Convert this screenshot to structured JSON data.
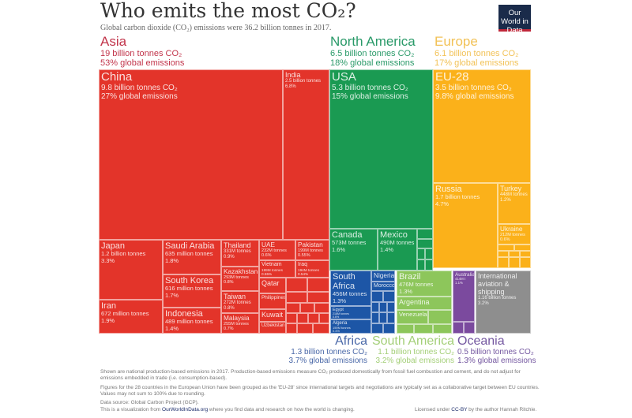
{
  "header": {
    "title": "Who emits the most CO₂?",
    "subtitle": "Global carbon dioxide (CO₂) emissions were 36.2 billion tonnes in 2017.",
    "logo": "Our World in Data"
  },
  "colors": {
    "Asia": "#e3342a",
    "North America": "#1a9a52",
    "Europe": "#fbb11a",
    "Africa": "#1d56a6",
    "South America": "#8dc65b",
    "Oceania": "#7b4a9e",
    "Aviation": "#8e8e8e",
    "Asia_label": "#c2354b",
    "North America_label": "#2a9a69",
    "Europe_label": "#f2c257",
    "Africa_label": "#4a68a8",
    "South America_label": "#a4cf78",
    "Oceania_label": "#7457a0"
  },
  "chart_data": {
    "type": "treemap",
    "title": "Who emits the most CO₂?",
    "total": "36.2 billion tonnes",
    "regions": [
      {
        "name": "Asia",
        "amount": "19 billion tonnes CO₂",
        "share": "53% global emissions",
        "countries": [
          {
            "name": "China",
            "amount": "9.8 billion tonnes CO₂",
            "share": "27% global emissions"
          },
          {
            "name": "India",
            "amount": "2.5 billion tonnes",
            "share": "6.8%"
          },
          {
            "name": "Japan",
            "amount": "1.2 billion tonnes",
            "share": "3.3%"
          },
          {
            "name": "Iran",
            "amount": "672 million tonnes",
            "share": "1.9%"
          },
          {
            "name": "Saudi Arabia",
            "amount": "635 million tonnes",
            "share": "1.8%"
          },
          {
            "name": "South Korea",
            "amount": "616 million tonnes",
            "share": "1.7%"
          },
          {
            "name": "Indonesia",
            "amount": "489 million tonnes",
            "share": "1.4%"
          },
          {
            "name": "Thailand",
            "amount": "331M tonnes",
            "share": "0.9%"
          },
          {
            "name": "Kazakhstan",
            "amount": "293M tonnes",
            "share": "0.8%"
          },
          {
            "name": "Taiwan",
            "amount": "272M tonnes",
            "share": "0.8%"
          },
          {
            "name": "Malaysia",
            "amount": "255M tonnes",
            "share": "0.7%"
          },
          {
            "name": "UAE",
            "amount": "232M tonnes",
            "share": "0.6%"
          },
          {
            "name": "Pakistan",
            "amount": "199M tonnes",
            "share": "0.55%"
          },
          {
            "name": "Vietnam",
            "amount": "199M tonnes",
            "share": "0.55%"
          },
          {
            "name": "Iraq",
            "amount": "194M tonnes",
            "share": "0.54%"
          },
          {
            "name": "Qatar"
          },
          {
            "name": "Philippines"
          },
          {
            "name": "Kuwait"
          },
          {
            "name": "Uzbekistan"
          }
        ]
      },
      {
        "name": "North America",
        "amount": "6.5 billion tonnes CO₂",
        "share": "18% global emissions",
        "countries": [
          {
            "name": "USA",
            "amount": "5.3 billion tonnes CO₂",
            "share": "15% global emissions"
          },
          {
            "name": "Canada",
            "amount": "573M tonnes",
            "share": "1.6%"
          },
          {
            "name": "Mexico",
            "amount": "490M tonnes",
            "share": "1.4%"
          }
        ]
      },
      {
        "name": "Europe",
        "amount": "6.1 billion tonnes CO₂",
        "share": "17% global emissions",
        "countries": [
          {
            "name": "EU-28",
            "amount": "3.5 billion tonnes CO₂",
            "share": "9.8% global emissions"
          },
          {
            "name": "Russia",
            "amount": "1.7 billion tonnes",
            "share": "4.7%"
          },
          {
            "name": "Turkey",
            "amount": "448M tonnes",
            "share": "1.2%"
          },
          {
            "name": "Ukraine",
            "amount": "212M tonnes",
            "share": "0.6%"
          }
        ]
      },
      {
        "name": "Africa",
        "amount": "1.3 billion tonnes CO₂",
        "share": "3.7% global emissions",
        "countries": [
          {
            "name": "South Africa",
            "amount": "456M tonnes",
            "share": "1.3%"
          },
          {
            "name": "Egypt",
            "amount": "218M tonnes",
            "share": "0.6%"
          },
          {
            "name": "Algeria",
            "amount": "159M tonnes",
            "share": "0.4%"
          },
          {
            "name": "Nigeria"
          },
          {
            "name": "Morocco"
          }
        ]
      },
      {
        "name": "South America",
        "amount": "1.1 billion tonnes CO₂",
        "share": "3.2% global emissions",
        "countries": [
          {
            "name": "Brazil",
            "amount": "476M tonnes",
            "share": "1.3%"
          },
          {
            "name": "Argentina"
          },
          {
            "name": "Venezuela"
          }
        ]
      },
      {
        "name": "Oceania",
        "amount": "0.5 billion tonnes CO₂",
        "share": "1.3% global emissions",
        "countries": [
          {
            "name": "Australia",
            "amount": "414M t",
            "share": "1.1%"
          }
        ]
      },
      {
        "name": "International aviation & shipping",
        "amount": "1.16 billion tonnes",
        "share": "3.2%",
        "countries": []
      }
    ]
  },
  "footer": {
    "note1": "Shown are national production-based emissions in 2017. Production-based emissions measure CO₂ produced domestically from fossil fuel combustion and cement, and do not adjust for emissions embedded in trade (i.e. consumption-based).",
    "note2": "Figures for the 28 countries in the European Union have been grouped as the 'EU-28' since international targets and negotiations are typically set as a collaborative target between EU countries. Values may not sum to 100% due to rounding.",
    "source": "Data source: Global Carbon Project (GCP).",
    "credit_pre": "This is a visualization from ",
    "credit_link": "OurWorldInData.org",
    "credit_post": " where you find data and research on how the world is changing.",
    "license_pre": "Licensed under ",
    "license_link": "CC-BY",
    "license_post": " by the author Hannah Ritchie."
  }
}
